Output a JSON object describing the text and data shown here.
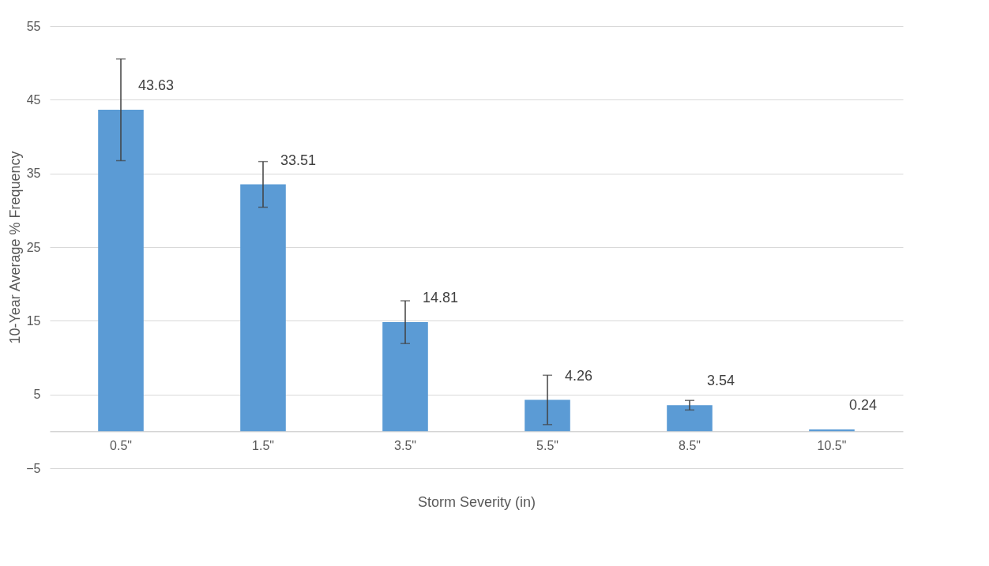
{
  "chart_data": {
    "type": "bar",
    "xlabel": "Storm Severity (in)",
    "ylabel": "10-Year Average % Frequency",
    "categories": [
      "0.5\"",
      "1.5\"",
      "3.5\"",
      "5.5\"",
      "8.5\"",
      "10.5\""
    ],
    "values": [
      43.63,
      33.51,
      14.81,
      4.26,
      3.54,
      0.24
    ],
    "errors": [
      6.9,
      3.1,
      2.9,
      3.35,
      0.65,
      null
    ],
    "color": "#5b9bd5",
    "ylim": [
      -5,
      55
    ],
    "yticks": [
      -5,
      5,
      15,
      25,
      35,
      45,
      55
    ],
    "grid": "y",
    "data_labels": true
  }
}
